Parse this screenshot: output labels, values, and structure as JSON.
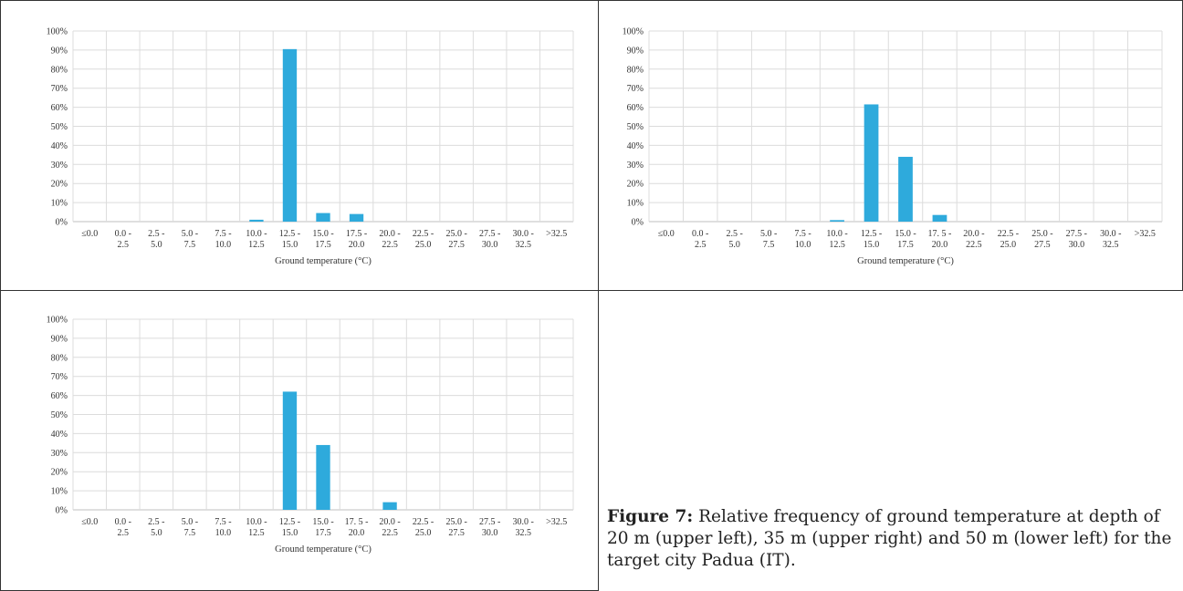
{
  "chart_data": [
    {
      "type": "bar",
      "title": "",
      "xlabel": "Ground temperature (°C)",
      "ylabel": "",
      "ylim": [
        0,
        100
      ],
      "y_ticks": [
        "0%",
        "10%",
        "20%",
        "30%",
        "40%",
        "50%",
        "60%",
        "70%",
        "80%",
        "90%",
        "100%"
      ],
      "categories": [
        {
          "top": "≤0.0",
          "bottom": ""
        },
        {
          "top": "0.0 -",
          "bottom": "2.5"
        },
        {
          "top": "2.5 -",
          "bottom": "5.0"
        },
        {
          "top": "5.0 -",
          "bottom": "7.5"
        },
        {
          "top": "7.5 -",
          "bottom": "10.0"
        },
        {
          "top": "10.0 -",
          "bottom": "12.5"
        },
        {
          "top": "12.5 -",
          "bottom": "15.0"
        },
        {
          "top": "15.0 -",
          "bottom": "17.5"
        },
        {
          "top": "17.5 -",
          "bottom": "20.0"
        },
        {
          "top": "20.0 -",
          "bottom": "22.5"
        },
        {
          "top": "22.5 -",
          "bottom": "25.0"
        },
        {
          "top": "25.0 -",
          "bottom": "27.5"
        },
        {
          "top": "27.5 -",
          "bottom": "30.0"
        },
        {
          "top": "30.0 -",
          "bottom": "32.5"
        },
        {
          "top": ">32.5",
          "bottom": ""
        }
      ],
      "values": [
        0,
        0,
        0,
        0,
        0,
        1,
        90.5,
        4.5,
        4,
        0,
        0,
        0,
        0,
        0,
        0
      ],
      "grid": true,
      "bar_color": "#2eaadc"
    },
    {
      "type": "bar",
      "title": "",
      "xlabel": "Ground temperature (°C)",
      "ylabel": "",
      "ylim": [
        0,
        100
      ],
      "y_ticks": [
        "0%",
        "10%",
        "20%",
        "30%",
        "40%",
        "50%",
        "60%",
        "70%",
        "80%",
        "90%",
        "100%"
      ],
      "categories": [
        {
          "top": "≤0.0",
          "bottom": ""
        },
        {
          "top": "0.0 -",
          "bottom": "2.5"
        },
        {
          "top": "2.5 -",
          "bottom": "5.0"
        },
        {
          "top": "5.0 -",
          "bottom": "7.5"
        },
        {
          "top": "7.5 -",
          "bottom": "10.0"
        },
        {
          "top": "10.0 -",
          "bottom": "12.5"
        },
        {
          "top": "12.5 -",
          "bottom": "15.0"
        },
        {
          "top": "15.0 -",
          "bottom": "17.5"
        },
        {
          "top": "17. 5 -",
          "bottom": "20.0"
        },
        {
          "top": "20.0 -",
          "bottom": "22.5"
        },
        {
          "top": "22.5 -",
          "bottom": "25.0"
        },
        {
          "top": "25.0 -",
          "bottom": "27.5"
        },
        {
          "top": "27.5 -",
          "bottom": "30.0"
        },
        {
          "top": "30.0 -",
          "bottom": "32.5"
        },
        {
          "top": ">32.5",
          "bottom": ""
        }
      ],
      "values": [
        0,
        0,
        0,
        0,
        0,
        0.8,
        61.5,
        34,
        3.5,
        0,
        0,
        0,
        0,
        0,
        0
      ],
      "grid": true,
      "bar_color": "#2eaadc"
    },
    {
      "type": "bar",
      "title": "",
      "xlabel": "Ground temperature (°C)",
      "ylabel": "",
      "ylim": [
        0,
        100
      ],
      "y_ticks": [
        "0%",
        "10%",
        "20%",
        "30%",
        "40%",
        "50%",
        "60%",
        "70%",
        "80%",
        "90%",
        "100%"
      ],
      "categories": [
        {
          "top": "≤0.0",
          "bottom": ""
        },
        {
          "top": "0.0 -",
          "bottom": "2.5"
        },
        {
          "top": "2.5 -",
          "bottom": "5.0"
        },
        {
          "top": "5.0 -",
          "bottom": "7.5"
        },
        {
          "top": "7.5 -",
          "bottom": "10.0"
        },
        {
          "top": "10.0 -",
          "bottom": "12.5"
        },
        {
          "top": "12.5 -",
          "bottom": "15.0"
        },
        {
          "top": "15.0 -",
          "bottom": "17.5"
        },
        {
          "top": "17. 5 -",
          "bottom": "20.0"
        },
        {
          "top": "20.0 -",
          "bottom": "22.5"
        },
        {
          "top": "22.5 -",
          "bottom": "25.0"
        },
        {
          "top": "25.0 -",
          "bottom": "27.5"
        },
        {
          "top": "27.5 -",
          "bottom": "30.0"
        },
        {
          "top": "30.0 -",
          "bottom": "32.5"
        },
        {
          "top": ">32.5",
          "bottom": ""
        }
      ],
      "values": [
        0,
        0,
        0,
        0,
        0,
        0,
        62,
        34,
        0,
        4,
        0,
        0,
        0,
        0,
        0
      ],
      "grid": true,
      "bar_color": "#2eaadc"
    }
  ],
  "caption": {
    "label": "Figure 7:",
    "text": " Relative frequency of ground temperature at depth of 20 m (upper left), 35 m (upper right) and 50 m (lower left) for the target city Padua (IT)."
  }
}
